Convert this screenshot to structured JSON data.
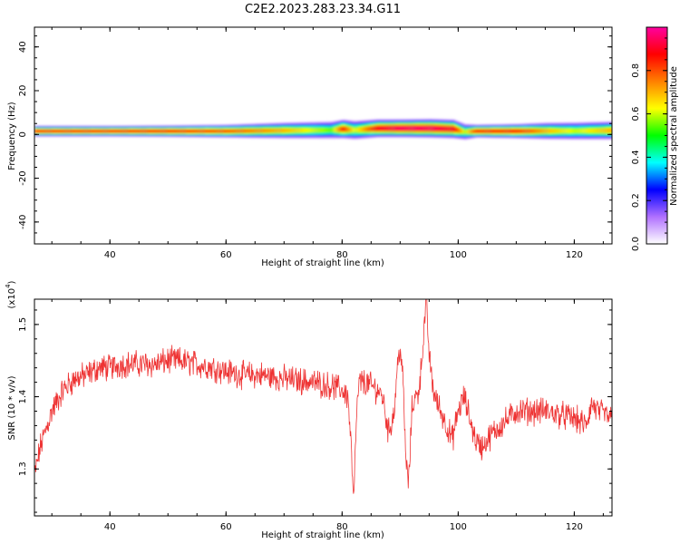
{
  "figure_title": "C2E2.2023.283.23.34.G11",
  "chart_data": [
    {
      "type": "heatmap",
      "xlabel": "Height of straight line (km)",
      "ylabel": "Frequency (Hz)",
      "xlim": [
        27,
        126.5
      ],
      "ylim": [
        -50,
        49
      ],
      "xticks": [
        40,
        60,
        80,
        100,
        120
      ],
      "yticks": [
        40,
        20,
        0,
        -20,
        -40
      ],
      "colorbar": {
        "label": "Normalized spectral amplitude",
        "range": [
          0,
          1
        ],
        "ticks": [
          "0.0",
          "0.2",
          "0.4",
          "0.6",
          "0.8"
        ],
        "colors": [
          "#ffffff",
          "#b070ff",
          "#0000ff",
          "#00ffff",
          "#00ff00",
          "#ffff00",
          "#ff8000",
          "#ff0000",
          "#ff00a0"
        ]
      },
      "ridge": {
        "x": [
          28,
          40,
          50,
          60,
          70,
          78,
          80,
          82,
          86,
          90,
          95,
          99,
          101,
          103,
          110,
          115,
          120,
          126
        ],
        "center_hz": [
          1.5,
          1.5,
          1.5,
          1.5,
          1.8,
          2.0,
          2.5,
          2.0,
          2.8,
          2.8,
          2.8,
          2.5,
          1.2,
          1.5,
          1.5,
          1.6,
          1.6,
          1.8
        ],
        "half_width_hz": [
          1.5,
          1.5,
          1.6,
          1.8,
          2.2,
          2.4,
          2.6,
          2.6,
          2.5,
          2.5,
          2.6,
          2.6,
          2.2,
          1.8,
          2.0,
          2.3,
          2.4,
          2.5
        ],
        "peak_amplitude": [
          0.85,
          0.85,
          0.85,
          0.8,
          0.7,
          0.55,
          0.85,
          0.6,
          0.9,
          0.95,
          0.95,
          0.9,
          0.6,
          0.85,
          0.85,
          0.7,
          0.6,
          0.7
        ]
      }
    },
    {
      "type": "line",
      "xlabel": "Height of straight line (km)",
      "ylabel": "SNR (10 * v/v)",
      "y_multiplier_label": "(x10",
      "y_multiplier_exp": "4",
      "y_multiplier_close": ")",
      "xlim": [
        27,
        126.5
      ],
      "ylim": [
        1.235,
        1.535
      ],
      "xticks": [
        40,
        60,
        80,
        100,
        120
      ],
      "yticks": [
        "1.3",
        "1.4",
        "1.5"
      ],
      "color": "#ee3333",
      "series": [
        {
          "x": [
            27,
            28,
            30,
            32,
            34,
            36,
            38,
            40,
            42,
            45,
            48,
            50,
            52,
            55,
            58,
            60,
            63,
            66,
            70,
            75,
            78,
            80,
            81,
            81.5,
            82,
            82.5,
            83,
            84,
            86,
            87,
            88,
            89,
            89.5,
            90,
            90.5,
            91,
            91.5,
            92,
            92.5,
            93,
            93.5,
            94,
            94.5,
            95,
            95.5,
            96,
            97,
            98,
            99,
            100,
            101,
            102,
            103,
            104,
            106,
            110,
            115,
            120,
            122,
            123,
            124,
            126.5
          ],
          "y": [
            1.29,
            1.33,
            1.38,
            1.41,
            1.425,
            1.43,
            1.44,
            1.44,
            1.445,
            1.445,
            1.445,
            1.45,
            1.45,
            1.445,
            1.44,
            1.435,
            1.43,
            1.43,
            1.425,
            1.42,
            1.415,
            1.41,
            1.4,
            1.34,
            1.25,
            1.38,
            1.42,
            1.42,
            1.41,
            1.4,
            1.35,
            1.38,
            1.44,
            1.47,
            1.42,
            1.31,
            1.28,
            1.38,
            1.4,
            1.4,
            1.43,
            1.48,
            1.53,
            1.46,
            1.42,
            1.4,
            1.38,
            1.36,
            1.34,
            1.38,
            1.4,
            1.37,
            1.34,
            1.33,
            1.35,
            1.38,
            1.38,
            1.37,
            1.36,
            1.39,
            1.38,
            1.37
          ],
          "noise_amplitude": 0.015
        }
      ]
    }
  ]
}
